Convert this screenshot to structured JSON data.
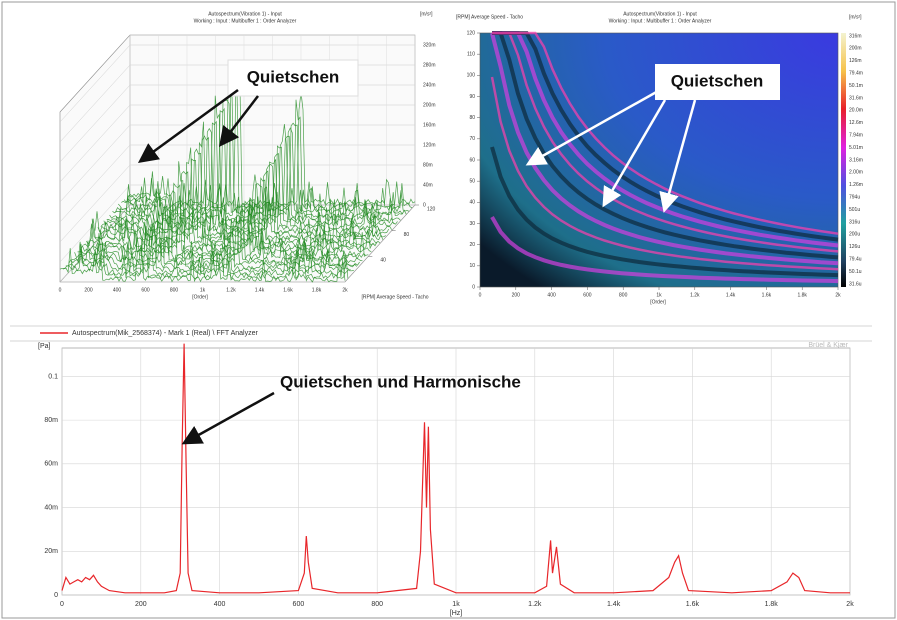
{
  "chart_data": [
    {
      "type": "waterfall",
      "title": "Autospectrum(Vibration 1) - Input",
      "subtitle": "Working : Input : Multibuffer 1 : Order Analyzer",
      "y_unit": "[m/s²]",
      "xlabel": "[Order]",
      "zlabel": "[RPM] Average Speed - Tacho",
      "annotation": "Quietschen",
      "color": "#1f8a1f",
      "xlim": [
        0,
        2000
      ],
      "xticks": [
        0,
        200,
        400,
        600,
        800,
        {
          "value": 1000,
          "label": "1k"
        },
        {
          "value": 1200,
          "label": "1.2k"
        },
        {
          "value": 1400,
          "label": "1.4k"
        },
        {
          "value": 1600,
          "label": "1.6k"
        },
        {
          "value": 1800,
          "label": "1.8k"
        },
        {
          "value": 2000,
          "label": "2k"
        }
      ],
      "ylim": [
        0,
        0.34
      ],
      "yticks": [
        0,
        {
          "value": 0.04,
          "label": "40m"
        },
        {
          "value": 0.08,
          "label": "80m"
        },
        {
          "value": 0.12,
          "label": "120m"
        },
        {
          "value": 0.16,
          "label": "160m"
        },
        {
          "value": 0.2,
          "label": "200m"
        },
        {
          "value": 0.24,
          "label": "240m"
        },
        {
          "value": 0.28,
          "label": "280m"
        },
        {
          "value": 0.32,
          "label": "320m"
        }
      ],
      "zlim": [
        0,
        120
      ],
      "zticks": [
        40,
        80,
        120
      ]
    },
    {
      "type": "heatmap",
      "title": "Autospectrum(Vibration 1) - Input",
      "subtitle": "Working : Input : Multibuffer 1 : Order Analyzer",
      "ylabel": "[RPM] Average Speed - Tacho",
      "xlabel": "[Order]",
      "unit": "[m/s²]",
      "annotation": "Quietschen",
      "xlim": [
        0,
        2000
      ],
      "xticks": [
        0,
        200,
        400,
        600,
        800,
        {
          "value": 1000,
          "label": "1k"
        },
        {
          "value": 1200,
          "label": "1.2k"
        },
        {
          "value": 1400,
          "label": "1.4k"
        },
        {
          "value": 1600,
          "label": "1.6k"
        },
        {
          "value": 1800,
          "label": "1.8k"
        },
        {
          "value": 2000,
          "label": "2k"
        }
      ],
      "ylim": [
        0,
        120
      ],
      "yticks": [
        0,
        10,
        20,
        30,
        40,
        50,
        60,
        70,
        80,
        90,
        100,
        110,
        120
      ],
      "colorbar_labels": [
        "316m",
        "200m",
        "126m",
        "79.4m",
        "50.1m",
        "31.6m",
        "20.0m",
        "12.6m",
        "7.94m",
        "5.01m",
        "3.16m",
        "2.00m",
        "1.26m",
        "794u",
        "501u",
        "316u",
        "200u",
        "126u",
        "79.4u",
        "50.1u",
        "31.6u"
      ]
    },
    {
      "type": "line",
      "legend": "Autospectrum(Mik_2568374) - Mark 1 (Real) \\ FFT Analyzer",
      "brand": "Brüel & Kjær",
      "ylabel": "[Pa]",
      "xlabel": "[Hz]",
      "annotation": "Quietschen und Harmonische",
      "grid": true,
      "xlim": [
        0,
        2000
      ],
      "xticks": [
        0,
        200,
        400,
        600,
        800,
        {
          "value": 1000,
          "label": "1k"
        },
        {
          "value": 1200,
          "label": "1.2k"
        },
        {
          "value": 1400,
          "label": "1.4k"
        },
        {
          "value": 1600,
          "label": "1.6k"
        },
        {
          "value": 1800,
          "label": "1.8k"
        },
        {
          "value": 2000,
          "label": "2k"
        }
      ],
      "ylim": [
        0,
        0.113
      ],
      "yticks": [
        0,
        {
          "value": 0.02,
          "label": "20m"
        },
        {
          "value": 0.04,
          "label": "40m"
        },
        {
          "value": 0.06,
          "label": "60m"
        },
        {
          "value": 0.08,
          "label": "80m"
        },
        0.1
      ],
      "series": [
        {
          "color": "#e8262a",
          "x": [
            0,
            10,
            20,
            30,
            40,
            50,
            60,
            70,
            80,
            90,
            100,
            120,
            160,
            200,
            260,
            290,
            300,
            305,
            310,
            315,
            320,
            330,
            400,
            500,
            600,
            615,
            620,
            625,
            635,
            700,
            800,
            900,
            910,
            915,
            920,
            925,
            930,
            935,
            945,
            1000,
            1100,
            1200,
            1230,
            1240,
            1245,
            1255,
            1265,
            1300,
            1400,
            1500,
            1540,
            1555,
            1565,
            1575,
            1590,
            1700,
            1800,
            1840,
            1855,
            1870,
            1885,
            1950,
            2000
          ],
          "values": [
            0.002,
            0.008,
            0.005,
            0.006,
            0.007,
            0.006,
            0.008,
            0.007,
            0.009,
            0.006,
            0.004,
            0.002,
            0.001,
            0.001,
            0.001,
            0.002,
            0.01,
            0.07,
            0.115,
            0.06,
            0.01,
            0.002,
            0.001,
            0.001,
            0.002,
            0.01,
            0.027,
            0.015,
            0.003,
            0.001,
            0.001,
            0.003,
            0.02,
            0.05,
            0.079,
            0.04,
            0.077,
            0.03,
            0.005,
            0.001,
            0.001,
            0.001,
            0.004,
            0.025,
            0.01,
            0.022,
            0.005,
            0.001,
            0.001,
            0.002,
            0.008,
            0.015,
            0.018,
            0.01,
            0.002,
            0.001,
            0.002,
            0.006,
            0.01,
            0.008,
            0.002,
            0.001,
            0.001
          ]
        }
      ]
    }
  ]
}
